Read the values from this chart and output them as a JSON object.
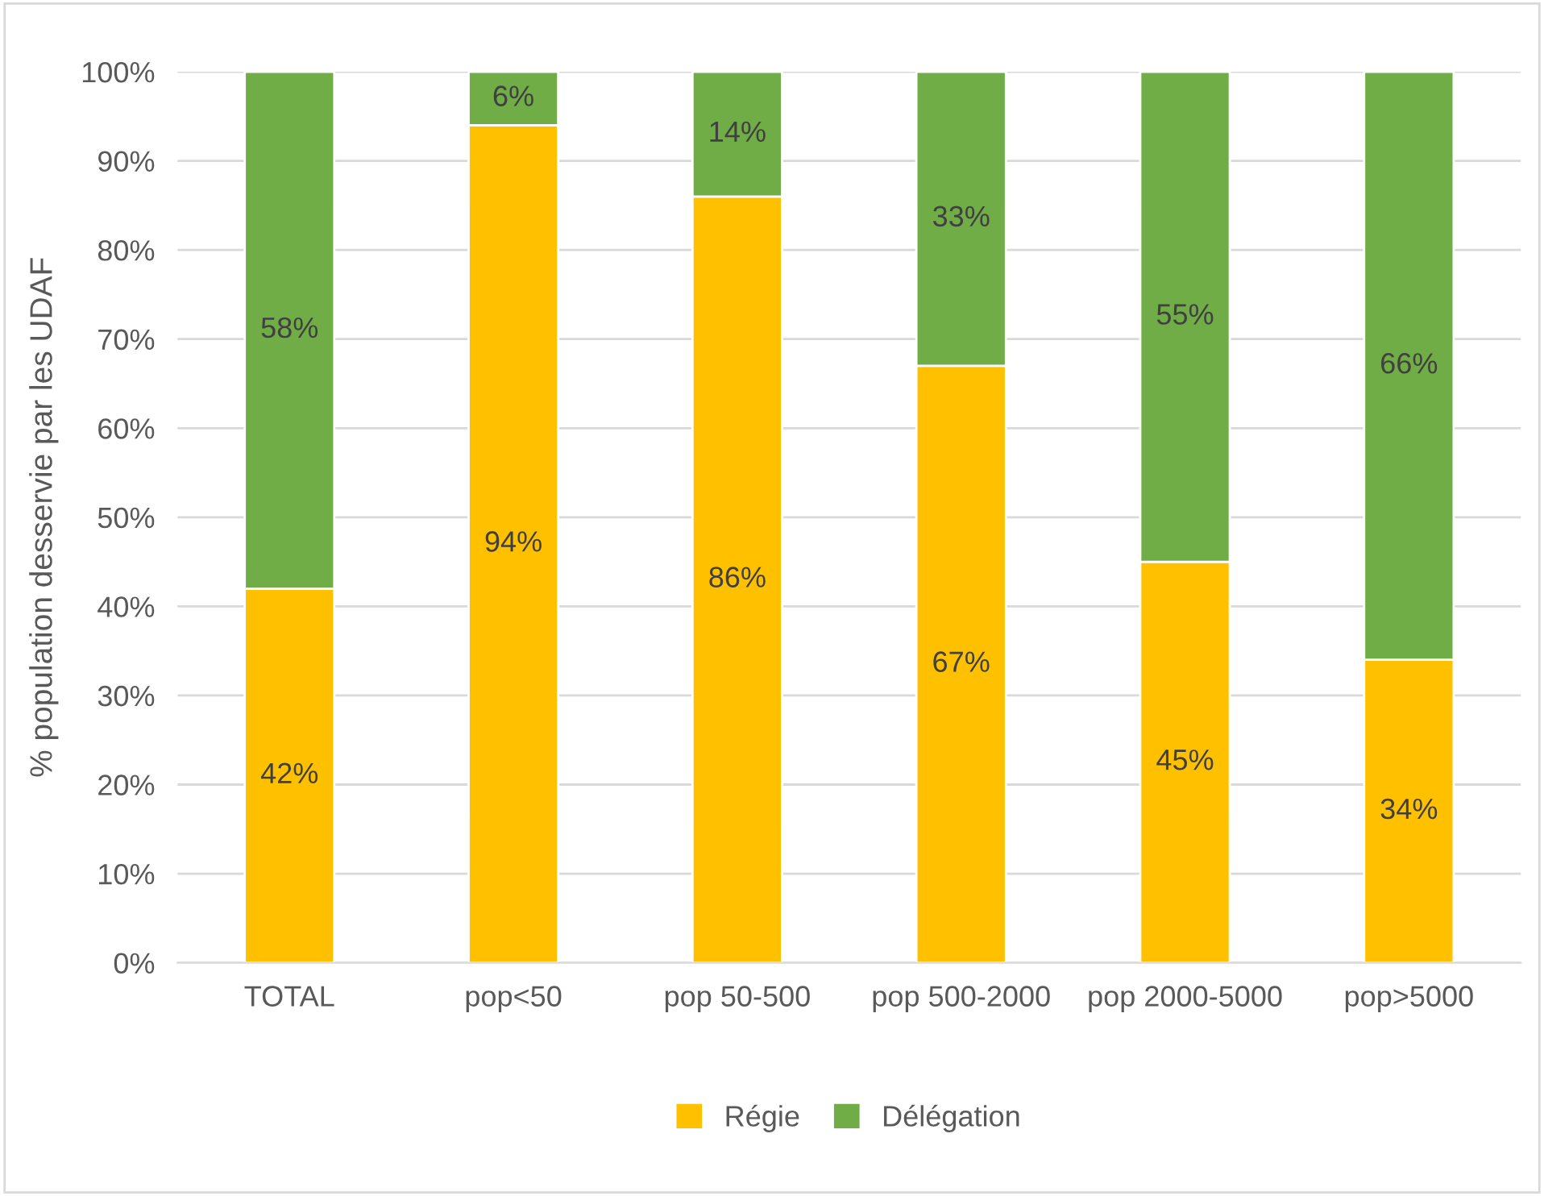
{
  "chart_data": {
    "type": "bar",
    "stacked": true,
    "ylabel": "% population desservie par les UDAF",
    "categories": [
      "TOTAL",
      "pop<50",
      "pop 50-500",
      "pop 500-2000",
      "pop 2000-5000",
      "pop>5000"
    ],
    "series": [
      {
        "name": "Régie",
        "color": "#ffc000",
        "values": [
          42,
          94,
          86,
          67,
          45,
          34
        ],
        "value_labels": [
          "42%",
          "94%",
          "86%",
          "67%",
          "45%",
          "34%"
        ]
      },
      {
        "name": "Délégation",
        "color": "#70ad47",
        "values": [
          58,
          6,
          14,
          33,
          55,
          66
        ],
        "value_labels": [
          "58%",
          "6%",
          "14%",
          "33%",
          "55%",
          "66%"
        ]
      }
    ],
    "ylim": [
      0,
      100
    ],
    "yticks": [
      {
        "value": 0,
        "label": "0%"
      },
      {
        "value": 10,
        "label": "10%"
      },
      {
        "value": 20,
        "label": "20%"
      },
      {
        "value": 30,
        "label": "30%"
      },
      {
        "value": 40,
        "label": "40%"
      },
      {
        "value": 50,
        "label": "50%"
      },
      {
        "value": 60,
        "label": "60%"
      },
      {
        "value": 70,
        "label": "70%"
      },
      {
        "value": 80,
        "label": "80%"
      },
      {
        "value": 90,
        "label": "90%"
      },
      {
        "value": 100,
        "label": "100%"
      }
    ],
    "grid": "y",
    "legend": "bottom"
  }
}
